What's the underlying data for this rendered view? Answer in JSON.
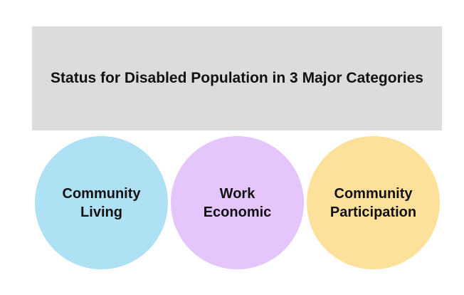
{
  "title": "Status for Disabled Population in 3 Major Categories",
  "categories": [
    {
      "lines": [
        "Community",
        "Living"
      ],
      "color": "#aee1f4"
    },
    {
      "lines": [
        "Work",
        "Economic"
      ],
      "color": "#e4c6fd"
    },
    {
      "lines": [
        "Community",
        "Participation"
      ],
      "color": "#fde09a"
    }
  ]
}
